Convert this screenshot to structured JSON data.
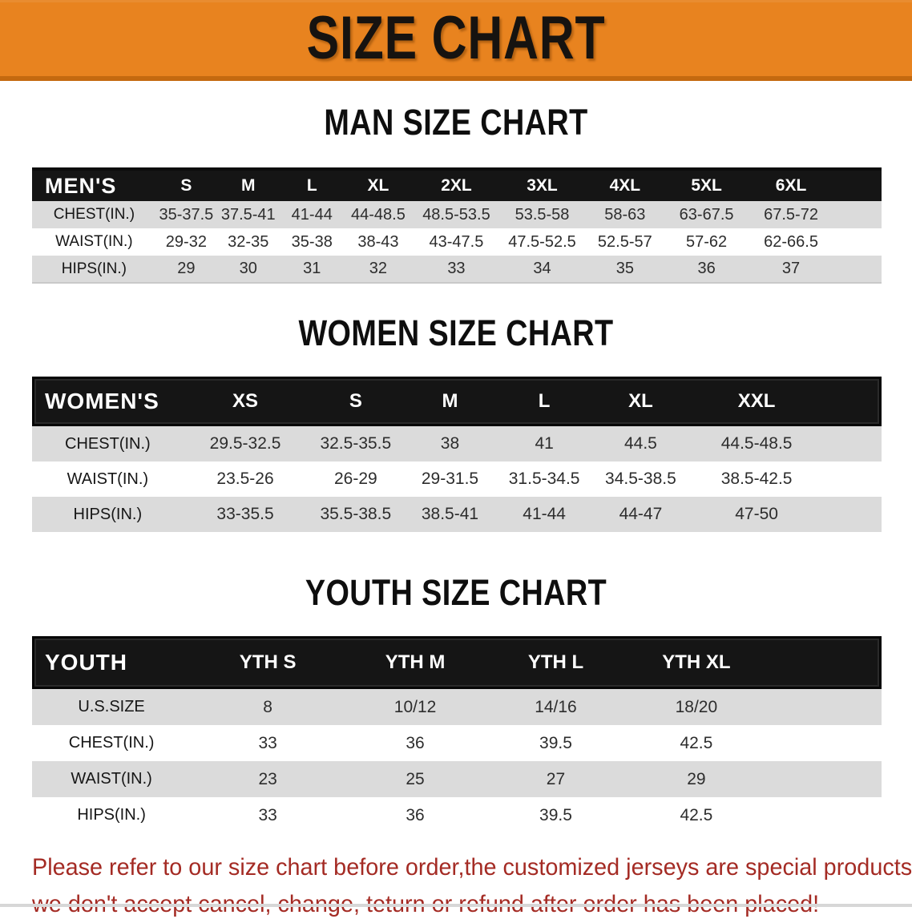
{
  "banner": {
    "title": "SIZE CHART"
  },
  "colors": {
    "banner_orange": "#E8831F",
    "banner_orange_dark": "#C4690F",
    "header_black": "#151515",
    "row_gray": "#DBDBDB",
    "footer_red": "#A42B24"
  },
  "sections": [
    {
      "title": "MAN SIZE CHART",
      "table": {
        "label": "MEN'S",
        "columns": [
          "S",
          "M",
          "L",
          "XL",
          "2XL",
          "3XL",
          "4XL",
          "5XL",
          "6XL"
        ],
        "rows": [
          {
            "label": "CHEST(IN.)",
            "values": [
              "35-37.5",
              "37.5-41",
              "41-44",
              "44-48.5",
              "48.5-53.5",
              "53.5-58",
              "58-63",
              "63-67.5",
              "67.5-72"
            ]
          },
          {
            "label": "WAIST(IN.)",
            "values": [
              "29-32",
              "32-35",
              "35-38",
              "38-43",
              "43-47.5",
              "47.5-52.5",
              "52.5-57",
              "57-62",
              "62-66.5"
            ]
          },
          {
            "label": "HIPS(IN.)",
            "values": [
              "29",
              "30",
              "31",
              "32",
              "33",
              "34",
              "35",
              "36",
              "37"
            ]
          }
        ]
      }
    },
    {
      "title": "WOMEN SIZE CHART",
      "table": {
        "label": "WOMEN'S",
        "columns": [
          "XS",
          "S",
          "M",
          "L",
          "XL",
          "XXL"
        ],
        "rows": [
          {
            "label": "CHEST(IN.)",
            "values": [
              "29.5-32.5",
              "32.5-35.5",
              "38",
              "41",
              "44.5",
              "44.5-48.5"
            ]
          },
          {
            "label": "WAIST(IN.)",
            "values": [
              "23.5-26",
              "26-29",
              "29-31.5",
              "31.5-34.5",
              "34.5-38.5",
              "38.5-42.5"
            ]
          },
          {
            "label": "HIPS(IN.)",
            "values": [
              "33-35.5",
              "35.5-38.5",
              "38.5-41",
              "41-44",
              "44-47",
              "47-50"
            ]
          }
        ]
      }
    },
    {
      "title": "YOUTH SIZE CHART",
      "table": {
        "label": "YOUTH",
        "columns": [
          "YTH S",
          "YTH M",
          "YTH L",
          "YTH XL"
        ],
        "rows": [
          {
            "label": "U.S.SIZE",
            "values": [
              "8",
              "10/12",
              "14/16",
              "18/20"
            ]
          },
          {
            "label": "CHEST(IN.)",
            "values": [
              "33",
              "36",
              "39.5",
              "42.5"
            ]
          },
          {
            "label": "WAIST(IN.)",
            "values": [
              "23",
              "25",
              "27",
              "29"
            ]
          },
          {
            "label": "HIPS(IN.)",
            "values": [
              "33",
              "36",
              "39.5",
              "42.5"
            ]
          }
        ]
      }
    }
  ],
  "footer": {
    "line1": "Please refer to our size chart before order,the customized jerseys are special products,",
    "line2": "we don't accept cancel, change, teturn or refund after order has been placed!"
  }
}
